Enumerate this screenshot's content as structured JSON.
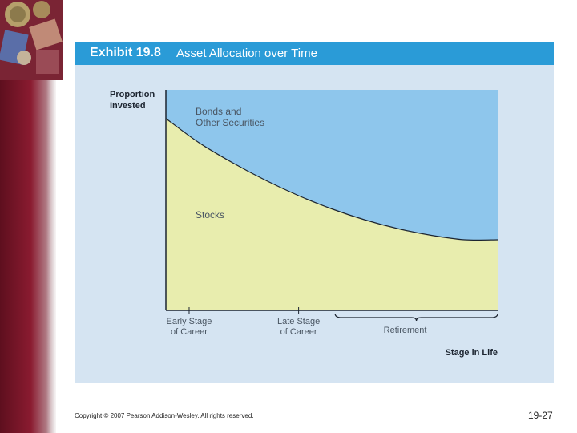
{
  "exhibit": {
    "label": "Exhibit 19.8",
    "title": "Asset Allocation over Time"
  },
  "chart_data": {
    "type": "area",
    "title": "Asset Allocation over Time",
    "ylabel_lines": [
      "Proportion",
      "Invested"
    ],
    "xlabel": "Stage in Life",
    "x": [
      0,
      0.1,
      0.2,
      0.3,
      0.4,
      0.5,
      0.6,
      0.7,
      0.8,
      0.9,
      1.0
    ],
    "series": [
      {
        "name": "Stocks",
        "label_lines": [
          "Stocks"
        ],
        "color": "#e8edae",
        "values": [
          0.87,
          0.76,
          0.67,
          0.59,
          0.52,
          0.46,
          0.41,
          0.37,
          0.34,
          0.32,
          0.32
        ]
      },
      {
        "name": "Bonds and Other Securities",
        "label_lines": [
          "Bonds and",
          "Other Securities"
        ],
        "color": "#8ec6ec",
        "values": [
          0.13,
          0.24,
          0.33,
          0.41,
          0.48,
          0.54,
          0.59,
          0.63,
          0.66,
          0.68,
          0.68
        ]
      }
    ],
    "stage_ticks": [
      {
        "x": 0.07,
        "lines": [
          "Early Stage",
          "of Career"
        ]
      },
      {
        "x": 0.4,
        "lines": [
          "Late Stage",
          "of Career"
        ]
      }
    ],
    "retirement": {
      "x_range": [
        0.51,
        1.0
      ],
      "label": "Retirement"
    },
    "ylim": [
      0,
      1
    ],
    "xlim": [
      0,
      1
    ],
    "grid": false,
    "legend": "none"
  },
  "footer": {
    "copyright": "Copyright © 2007 Pearson Addison-Wesley. All rights reserved.",
    "page": "19-27"
  }
}
